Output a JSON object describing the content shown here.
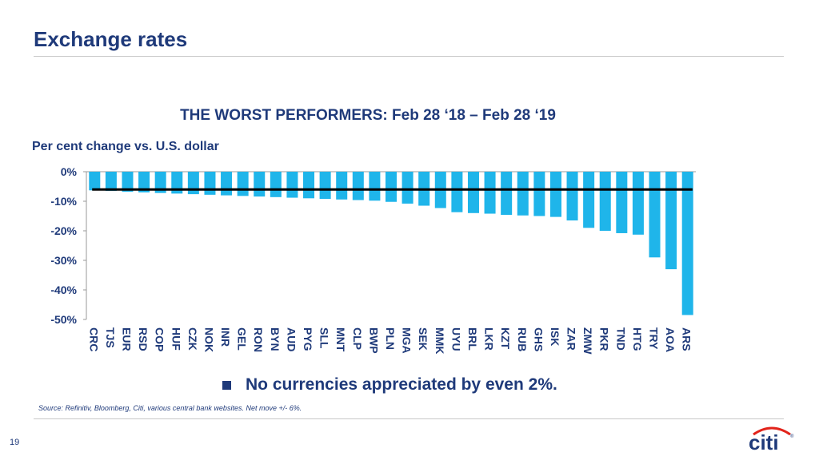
{
  "slide": {
    "title": "Exchange rates",
    "page_number": "19",
    "bullet": "No currencies appreciated by even 2%.",
    "source": "Source: Refinitiv, Bloomberg, Citi, various central bank websites. Net move +/- 6%.",
    "logo_text": "citi",
    "colors": {
      "primary": "#1f3a7a",
      "bar": "#1fb5ea",
      "accent_red": "#e2231a",
      "reference_line": "#000000"
    }
  },
  "chart_data": {
    "type": "bar",
    "title": "THE WORST PERFORMERS: Feb 28 ‘18 – Feb 28 ‘19",
    "subtitle": "Per cent change vs. U.S. dollar",
    "ylim": [
      -50,
      0
    ],
    "yticks": [
      0,
      -10,
      -20,
      -30,
      -40,
      -50
    ],
    "ytick_labels": [
      "0%",
      "-10%",
      "-20%",
      "-30%",
      "-40%",
      "-50%"
    ],
    "categories": [
      "CRC",
      "TJS",
      "EUR",
      "RSD",
      "COP",
      "HUF",
      "CZK",
      "NOK",
      "INR",
      "GEL",
      "RON",
      "BYN",
      "AUD",
      "PYG",
      "SLL",
      "MNT",
      "CLP",
      "BWP",
      "PLN",
      "MGA",
      "SEK",
      "MMK",
      "UYU",
      "BRL",
      "LKR",
      "KZT",
      "RUB",
      "GHS",
      "ISK",
      "ZAR",
      "ZMW",
      "PKR",
      "TND",
      "HTG",
      "TRY",
      "AOA",
      "ARS"
    ],
    "values": [
      -6.3,
      -6.5,
      -6.8,
      -7.0,
      -7.2,
      -7.4,
      -7.6,
      -7.8,
      -8.0,
      -8.2,
      -8.4,
      -8.6,
      -8.8,
      -9.0,
      -9.2,
      -9.4,
      -9.6,
      -9.8,
      -10.2,
      -10.8,
      -11.5,
      -12.3,
      -13.7,
      -14.0,
      -14.2,
      -14.6,
      -14.8,
      -15.0,
      -15.3,
      -16.5,
      -19.0,
      -20.0,
      -20.8,
      -21.3,
      -29.0,
      -33.0,
      -48.5
    ],
    "reference_line": -6,
    "grid": false,
    "legend": "none"
  }
}
